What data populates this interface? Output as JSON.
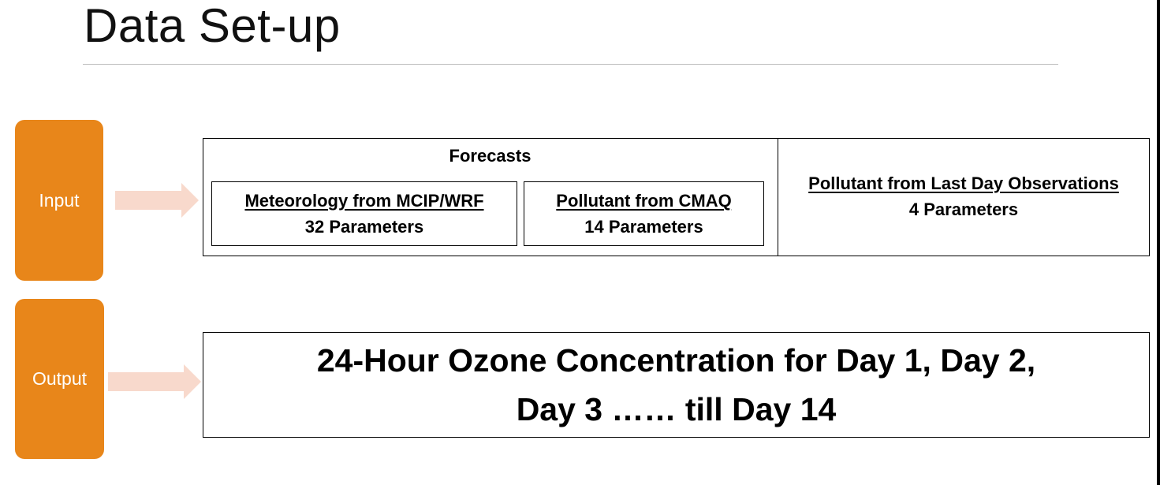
{
  "title": "Data Set-up",
  "colors": {
    "pill": "#e8861a",
    "arrow": "#f8d9cc",
    "rule": "#bdbdbd",
    "text": "#000000"
  },
  "labels": {
    "input": "Input",
    "output": "Output"
  },
  "input_section": {
    "forecasts_label": "Forecasts",
    "meteorology": {
      "title": "Meteorology from MCIP/WRF",
      "params": "32 Parameters"
    },
    "cmaq": {
      "title": "Pollutant from CMAQ",
      "params": "14 Parameters"
    },
    "observations": {
      "title": "Pollutant from Last Day Observations",
      "params": "4 Parameters"
    }
  },
  "output_section": {
    "line1": "24-Hour Ozone Concentration for Day 1, Day 2,",
    "line2": "Day 3 …… till Day 14"
  }
}
